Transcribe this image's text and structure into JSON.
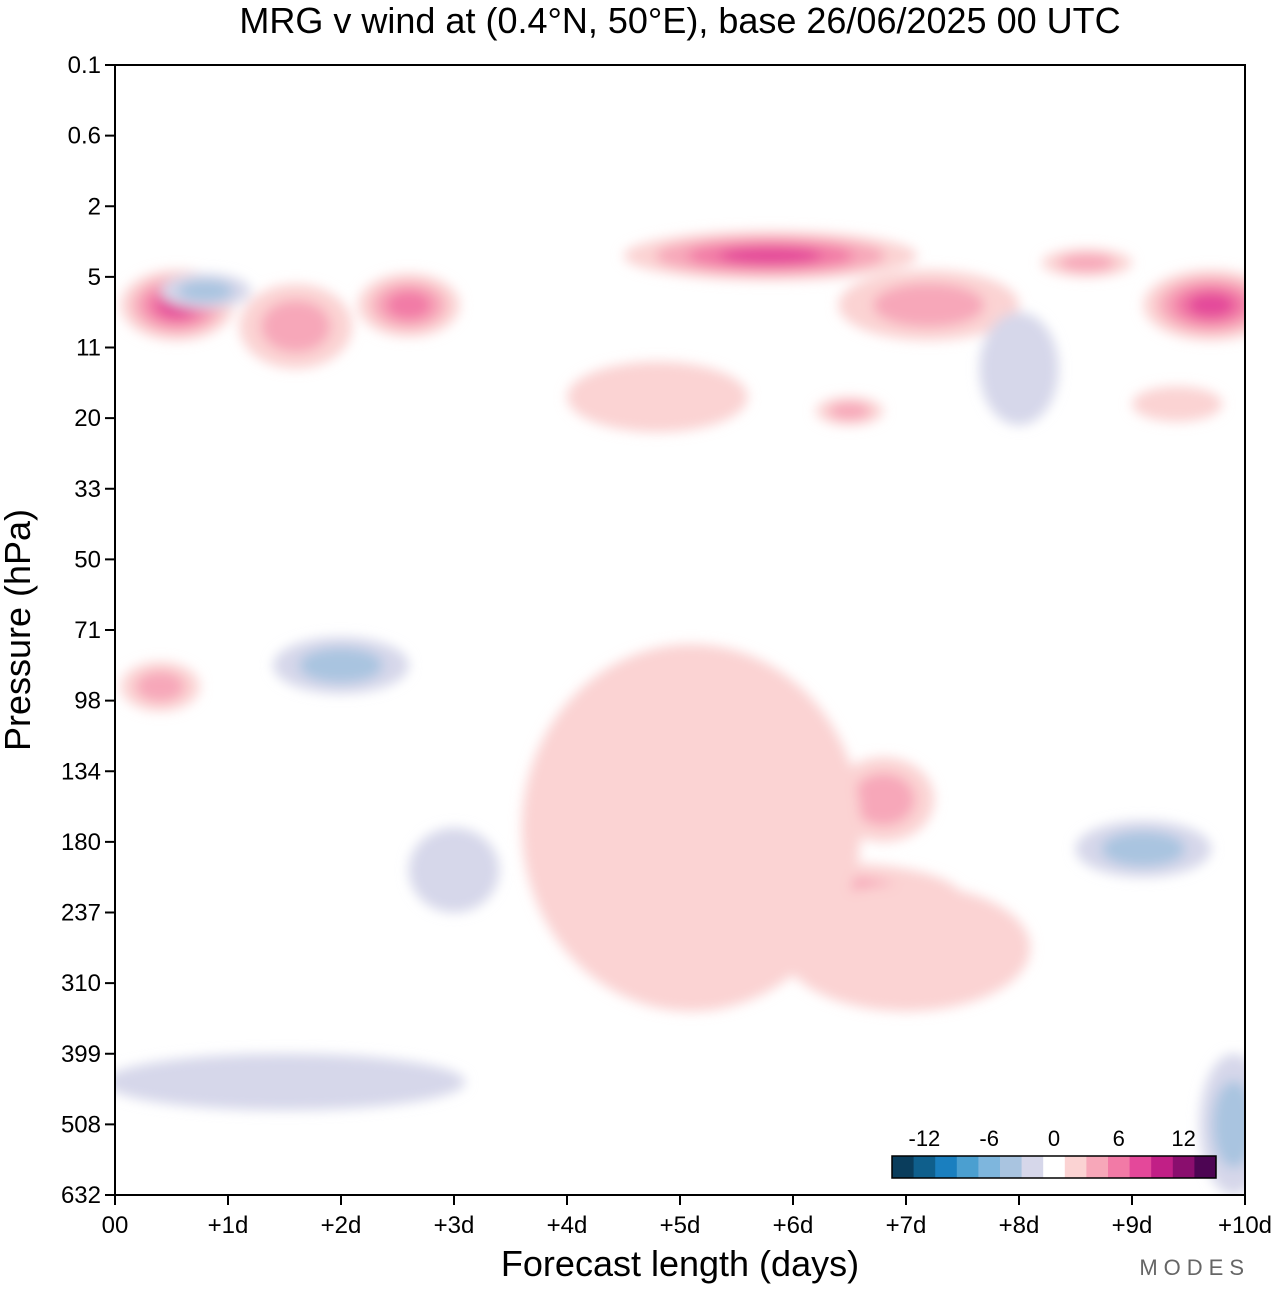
{
  "chart_data": {
    "type": "heatmap",
    "title": "MRG v wind at (0.4°N, 50°E),  base 26/06/2025  00 UTC",
    "xlabel": "Forecast length (days)",
    "ylabel": "Pressure (hPa)",
    "x_ticks": [
      "00",
      "+1d",
      "+2d",
      "+3d",
      "+4d",
      "+5d",
      "+6d",
      "+7d",
      "+8d",
      "+9d",
      "+10d"
    ],
    "y_ticks": [
      "0.1",
      "0.6",
      "2",
      "5",
      "11",
      "20",
      "33",
      "50",
      "71",
      "98",
      "134",
      "180",
      "237",
      "310",
      "399",
      "508",
      "632"
    ],
    "xlim": [
      0,
      10
    ],
    "colorbar": {
      "tick_labels": [
        "-12",
        "-6",
        "0",
        "6",
        "12"
      ],
      "tick_values": [
        -12,
        -6,
        0,
        6,
        12
      ],
      "range": [
        -15,
        15
      ],
      "colors": [
        "#0a3d5c",
        "#0f5f8c",
        "#1a7fbf",
        "#4b9fd0",
        "#7eb6dd",
        "#a9c4e0",
        "#d6d7ea",
        "#ffffff",
        "#fbd3d3",
        "#f7a7b9",
        "#f27aa6",
        "#e4489a",
        "#c11f86",
        "#8a0e6e",
        "#4d0553"
      ]
    },
    "fields": [
      {
        "level": 4,
        "x": 0.55,
        "y": 12.6,
        "rx": 0.5,
        "ry": 0.5
      },
      {
        "level": 3,
        "x": 2.6,
        "y": 12.6,
        "rx": 0.45,
        "ry": 0.45
      },
      {
        "level": 4,
        "x": 5.8,
        "y": 13.3,
        "rx": 1.3,
        "ry": 0.35
      },
      {
        "level": 4,
        "x": 9.7,
        "y": 12.6,
        "rx": 0.6,
        "ry": 0.5
      },
      {
        "level": 2,
        "x": 1.6,
        "y": 12.3,
        "rx": 0.5,
        "ry": 0.6
      },
      {
        "level": 2,
        "x": 7.2,
        "y": 12.6,
        "rx": 0.8,
        "ry": 0.5
      },
      {
        "level": 2,
        "x": 6.5,
        "y": 11.1,
        "rx": 0.3,
        "ry": 0.2
      },
      {
        "level": 2,
        "x": 8.6,
        "y": 13.2,
        "rx": 0.4,
        "ry": 0.2
      },
      {
        "level": 1,
        "x": 4.8,
        "y": 11.3,
        "rx": 0.8,
        "ry": 0.5
      },
      {
        "level": 1,
        "x": 9.4,
        "y": 11.2,
        "rx": 0.4,
        "ry": 0.25
      },
      {
        "level": 2,
        "x": 0.4,
        "y": 7.2,
        "rx": 0.35,
        "ry": 0.35
      },
      {
        "level": 2,
        "x": 6.8,
        "y": 5.6,
        "rx": 0.45,
        "ry": 0.6
      },
      {
        "level": 2,
        "x": 6.4,
        "y": 4.2,
        "rx": 1.1,
        "ry": 0.5
      },
      {
        "level": 1,
        "x": 5.1,
        "y": 5.2,
        "rx": 1.5,
        "ry": 2.6
      },
      {
        "level": 1,
        "x": 7.0,
        "y": 3.5,
        "rx": 1.1,
        "ry": 0.9
      },
      {
        "level": 1,
        "x": 4.5,
        "y": 5.6,
        "rx": 0.25,
        "ry": 0.7
      },
      {
        "level": -2,
        "x": 2.0,
        "y": 7.5,
        "rx": 0.6,
        "ry": 0.4
      },
      {
        "level": -2,
        "x": 9.1,
        "y": 4.9,
        "rx": 0.6,
        "ry": 0.4
      },
      {
        "level": -2,
        "x": 0.8,
        "y": 12.8,
        "rx": 0.4,
        "ry": 0.25
      },
      {
        "level": -2,
        "x": 9.9,
        "y": 1.0,
        "rx": 0.3,
        "ry": 1.0
      },
      {
        "level": -1,
        "x": 1.5,
        "y": 1.6,
        "rx": 1.6,
        "ry": 0.4
      },
      {
        "level": -1,
        "x": 3.0,
        "y": 4.6,
        "rx": 0.4,
        "ry": 0.6
      },
      {
        "level": -1,
        "x": 8.0,
        "y": 11.7,
        "rx": 0.35,
        "ry": 0.8
      }
    ]
  }
}
